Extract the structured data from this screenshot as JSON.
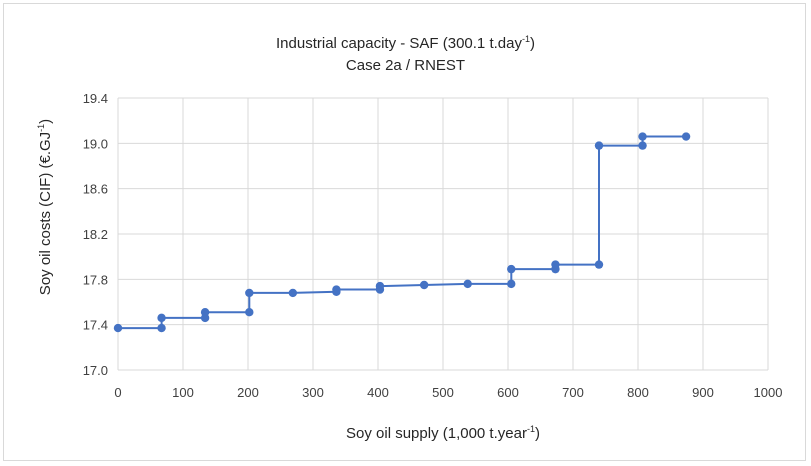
{
  "chart_data": {
    "type": "line",
    "title_main": "Industrial capacity - SAF (300.1 t.day",
    "title_sup": "-1",
    "title_end": ")",
    "subtitle": "Case 2a / RNEST",
    "xlabel_main": "Soy oil supply (1,000 t.year",
    "xlabel_sup": "-1",
    "xlabel_end": ")",
    "ylabel_main": "Soy oil costs (CIF) (€.GJ",
    "ylabel_sup": "-1",
    "ylabel_end": ")",
    "xlim": [
      0,
      1000
    ],
    "ylim": [
      17.0,
      19.4
    ],
    "xticks": [
      "0",
      "100",
      "200",
      "300",
      "400",
      "500",
      "600",
      "700",
      "800",
      "900",
      "1000"
    ],
    "yticks": [
      "17.0",
      "17.4",
      "17.8",
      "18.2",
      "18.6",
      "19.0",
      "19.4"
    ],
    "grid": true,
    "series_color": "#4472c4",
    "series": [
      {
        "x": [
          0,
          67,
          67,
          134,
          134,
          202,
          202,
          269,
          336,
          336,
          403,
          403,
          471,
          538,
          605,
          605,
          673,
          673,
          740,
          740,
          807,
          807,
          874
        ],
        "y": [
          17.37,
          17.37,
          17.46,
          17.46,
          17.51,
          17.51,
          17.68,
          17.68,
          17.69,
          17.71,
          17.71,
          17.74,
          17.75,
          17.76,
          17.76,
          17.89,
          17.89,
          17.93,
          17.93,
          18.98,
          18.98,
          19.06,
          19.06
        ]
      }
    ]
  }
}
